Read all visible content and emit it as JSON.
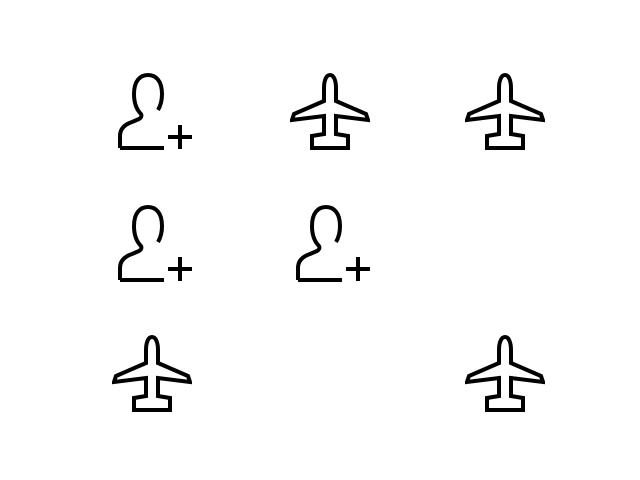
{
  "grid": {
    "rows": 3,
    "columns": 3,
    "cells": [
      {
        "row": 0,
        "col": 0,
        "icon": "add-user-icon"
      },
      {
        "row": 0,
        "col": 1,
        "icon": "airplane-icon"
      },
      {
        "row": 0,
        "col": 2,
        "icon": "airplane-icon"
      },
      {
        "row": 1,
        "col": 0,
        "icon": "add-user-icon"
      },
      {
        "row": 1,
        "col": 1,
        "icon": "add-user-icon"
      },
      {
        "row": 1,
        "col": 2,
        "icon": "empty"
      },
      {
        "row": 2,
        "col": 0,
        "icon": "airplane-icon"
      },
      {
        "row": 2,
        "col": 1,
        "icon": "empty"
      },
      {
        "row": 2,
        "col": 2,
        "icon": "airplane-icon"
      }
    ]
  },
  "colors": {
    "background": "#ffffff",
    "icon_stroke": "#000000"
  }
}
